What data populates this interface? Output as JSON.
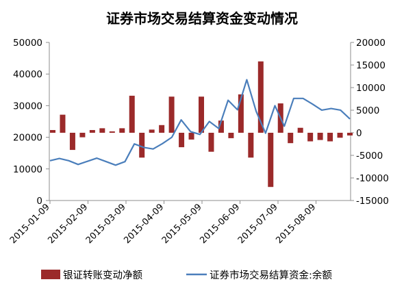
{
  "chart_data": {
    "type": "bar+line",
    "title": "证券市场交易结算资金变动情况",
    "left_axis": {
      "ticks": [
        "0",
        "10000",
        "20000",
        "30000",
        "40000",
        "50000"
      ],
      "ylim": [
        0,
        50000
      ]
    },
    "right_axis": {
      "ticks": [
        "-15000",
        "-10000",
        "-5000",
        "0",
        "5000",
        "10000",
        "15000",
        "20000"
      ],
      "ylim": [
        -15000,
        20000
      ]
    },
    "x_tick_labels": [
      "2015-01-09",
      "2015-02-09",
      "2015-03-09",
      "2015-04-09",
      "2015-05-09",
      "2015-06-09",
      "2015-07-09",
      "2015-08-09"
    ],
    "series": [
      {
        "name": "银证转账变动净额",
        "kind": "bar",
        "axis": "right",
        "color": "#9b2a2a",
        "values": [
          600,
          4000,
          -3800,
          -1000,
          600,
          1000,
          300,
          1000,
          8200,
          -5500,
          700,
          1700,
          8000,
          -3200,
          -1500,
          8000,
          -4200,
          2700,
          -1200,
          8500,
          -5500,
          15800,
          -12000,
          6500,
          -2300,
          1100,
          -1900,
          -1600,
          -1900,
          -1100,
          -600
        ]
      },
      {
        "name": "证券市场交易结算资金:余额",
        "kind": "line",
        "axis": "left",
        "color": "#4a7ebb",
        "values": [
          12600,
          13300,
          12600,
          11400,
          12400,
          13400,
          12300,
          11200,
          12300,
          17900,
          16800,
          16300,
          18000,
          20000,
          25500,
          21800,
          20900,
          25000,
          22800,
          31700,
          28700,
          38200,
          28200,
          21300,
          30000,
          23500,
          32300,
          32300,
          30500,
          28600,
          29100,
          28600,
          25800
        ]
      }
    ]
  }
}
